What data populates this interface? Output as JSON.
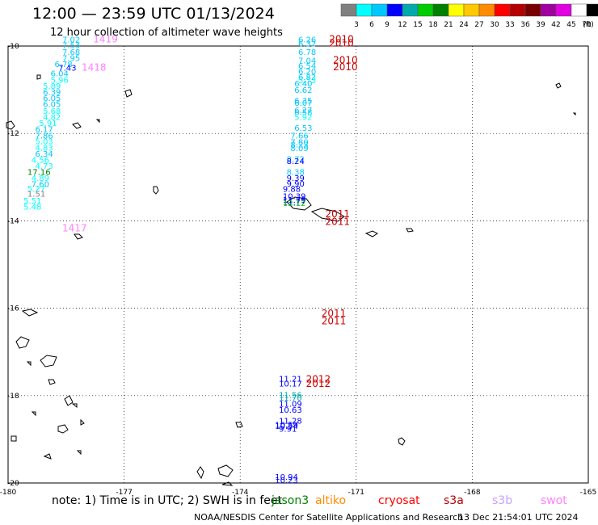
{
  "title": "12:00 — 23:59 UTC 01/13/2024",
  "subtitle": "12 hour collection of altimeter wave heights",
  "colorbar": {
    "labels": [
      "3",
      "6",
      "9",
      "12",
      "15",
      "18",
      "21",
      "24",
      "27",
      "30",
      "33",
      "36",
      "39",
      "42",
      "45",
      "70"
    ],
    "unit": "(ft)",
    "colors": [
      "#808080",
      "#00ffff",
      "#00c8ff",
      "#0000ff",
      "#00aaaa",
      "#00cc00",
      "#008000",
      "#ffff00",
      "#ffc800",
      "#ff8c00",
      "#ff0000",
      "#b40000",
      "#780000",
      "#a000a0",
      "#e000e0",
      "#ffffff",
      "#000000"
    ]
  },
  "footer": {
    "note": "note: 1) Time is in UTC; 2) SWH is in feet",
    "satellites": [
      {
        "name": "jason3",
        "color": "#008000"
      },
      {
        "name": "altiko",
        "color": "#ff8c00"
      },
      {
        "name": "cryosat",
        "color": "#ff0000"
      },
      {
        "name": "s3a",
        "color": "#b40000"
      },
      {
        "name": "s3b",
        "color": "#c8a0ff"
      },
      {
        "name": "swot",
        "color": "#ff80ff"
      }
    ],
    "credit": "NOAA/NESDIS Center for Satellite Applications and Research",
    "timestamp": "13 Dec 21:54:01 UTC 2024"
  },
  "chart_data": {
    "type": "scatter",
    "xlim": [
      -180,
      -165
    ],
    "ylim": [
      -20,
      -10
    ],
    "x_ticks": [
      "-180",
      "-177",
      "-174",
      "-171",
      "-168",
      "-165"
    ],
    "y_ticks": [
      "-10",
      "-12",
      "-14",
      "-16",
      "-18",
      "-20"
    ],
    "grid": true,
    "track_labels": [
      {
        "text": "1419",
        "lon": -177.8,
        "lat": -9.92,
        "color": "#ff80ff"
      },
      {
        "text": "1418",
        "lon": -178.1,
        "lat": -10.56,
        "color": "#ff80ff"
      },
      {
        "text": "1417",
        "lon": -178.6,
        "lat": -14.24,
        "color": "#ff80ff"
      },
      {
        "text": "2010",
        "lon": -171.7,
        "lat": -9.92,
        "color": "#cc0000"
      },
      {
        "text": "2010",
        "lon": -171.7,
        "lat": -10.01,
        "color": "#cc0000"
      },
      {
        "text": "2010",
        "lon": -171.6,
        "lat": -10.4,
        "color": "#cc0000"
      },
      {
        "text": "2010",
        "lon": -171.6,
        "lat": -10.55,
        "color": "#cc0000"
      },
      {
        "text": "2011",
        "lon": -171.8,
        "lat": -13.92,
        "color": "#cc0000"
      },
      {
        "text": "2011",
        "lon": -171.8,
        "lat": -14.09,
        "color": "#cc0000"
      },
      {
        "text": "2011",
        "lon": -171.9,
        "lat": -16.19,
        "color": "#cc0000"
      },
      {
        "text": "2011",
        "lon": -171.9,
        "lat": -16.37,
        "color": "#cc0000"
      },
      {
        "text": "2012",
        "lon": -172.3,
        "lat": -17.7,
        "color": "#cc0000"
      },
      {
        "text": "2012",
        "lon": -172.3,
        "lat": -17.8,
        "color": "#cc0000"
      }
    ],
    "points": [
      {
        "v": "7.02",
        "lon": -178.6,
        "lat": -9.92,
        "color": "#00c8ff"
      },
      {
        "v": "7.53",
        "lon": -178.6,
        "lat": -10.05,
        "color": "#00c8ff"
      },
      {
        "v": "7.68",
        "lon": -178.6,
        "lat": -10.2,
        "color": "#00c8ff"
      },
      {
        "v": "7.95",
        "lon": -178.6,
        "lat": -10.34,
        "color": "#00c8ff"
      },
      {
        "v": "6.78",
        "lon": -178.8,
        "lat": -10.48,
        "color": "#00c8ff"
      },
      {
        "v": "7.43",
        "lon": -178.7,
        "lat": -10.56,
        "color": "#0000ff"
      },
      {
        "v": "6.04",
        "lon": -178.9,
        "lat": -10.69,
        "color": "#00c8ff"
      },
      {
        "v": "5.96",
        "lon": -178.9,
        "lat": -10.84,
        "color": "#00ffff"
      },
      {
        "v": "5.89",
        "lon": -179.1,
        "lat": -10.98,
        "color": "#00ffff"
      },
      {
        "v": "6.39",
        "lon": -179.1,
        "lat": -11.12,
        "color": "#00c8ff"
      },
      {
        "v": "6.05",
        "lon": -179.1,
        "lat": -11.26,
        "color": "#00c8ff"
      },
      {
        "v": "6.05",
        "lon": -179.1,
        "lat": -11.4,
        "color": "#00c8ff"
      },
      {
        "v": "5.68",
        "lon": -179.1,
        "lat": -11.55,
        "color": "#00ffff"
      },
      {
        "v": "4.82",
        "lon": -179.1,
        "lat": -11.69,
        "color": "#00ffff"
      },
      {
        "v": "5.91",
        "lon": -179.2,
        "lat": -11.83,
        "color": "#00ffff"
      },
      {
        "v": "6.17",
        "lon": -179.3,
        "lat": -11.97,
        "color": "#00c8ff"
      },
      {
        "v": "7.86",
        "lon": -179.3,
        "lat": -12.12,
        "color": "#00c8ff"
      },
      {
        "v": "5.03",
        "lon": -179.3,
        "lat": -12.25,
        "color": "#00ffff"
      },
      {
        "v": "4.83",
        "lon": -179.3,
        "lat": -12.39,
        "color": "#00ffff"
      },
      {
        "v": "6.34",
        "lon": -179.3,
        "lat": -12.53,
        "color": "#00c8ff"
      },
      {
        "v": "4.56",
        "lon": -179.4,
        "lat": -12.67,
        "color": "#00ffff"
      },
      {
        "v": "4.73",
        "lon": -179.3,
        "lat": -12.81,
        "color": "#00ffff"
      },
      {
        "v": "17.16",
        "lon": -179.5,
        "lat": -12.95,
        "color": "#008000"
      },
      {
        "v": "4.89",
        "lon": -179.4,
        "lat": -13.09,
        "color": "#00ffff"
      },
      {
        "v": "7.60",
        "lon": -179.4,
        "lat": -13.23,
        "color": "#00c8ff"
      },
      {
        "v": "5.27",
        "lon": -179.5,
        "lat": -13.33,
        "color": "#00ffff"
      },
      {
        "v": "1.51",
        "lon": -179.5,
        "lat": -13.45,
        "color": "#808080"
      },
      {
        "v": "5.51",
        "lon": -179.6,
        "lat": -13.6,
        "color": "#00ffff"
      },
      {
        "v": "5.48",
        "lon": -179.6,
        "lat": -13.74,
        "color": "#00ffff"
      },
      {
        "v": "6.26",
        "lon": -172.5,
        "lat": -9.92,
        "color": "#00c8ff"
      },
      {
        "v": "6.32",
        "lon": -172.5,
        "lat": -10.01,
        "color": "#00c8ff"
      },
      {
        "v": "6.78",
        "lon": -172.5,
        "lat": -10.2,
        "color": "#00c8ff"
      },
      {
        "v": "7.04",
        "lon": -172.5,
        "lat": -10.4,
        "color": "#00c8ff"
      },
      {
        "v": "6.54",
        "lon": -172.5,
        "lat": -10.52,
        "color": "#00c8ff"
      },
      {
        "v": "6.20",
        "lon": -172.5,
        "lat": -10.65,
        "color": "#00c8ff"
      },
      {
        "v": "6.82",
        "lon": -172.5,
        "lat": -10.78,
        "color": "#00c8ff"
      },
      {
        "v": "5.73",
        "lon": -172.5,
        "lat": -10.85,
        "color": "#00ffff"
      },
      {
        "v": "6.40",
        "lon": -172.6,
        "lat": -10.92,
        "color": "#00c8ff"
      },
      {
        "v": "6.62",
        "lon": -172.6,
        "lat": -11.07,
        "color": "#00c8ff"
      },
      {
        "v": "6.35",
        "lon": -172.6,
        "lat": -11.31,
        "color": "#00c8ff"
      },
      {
        "v": "6.07",
        "lon": -172.6,
        "lat": -11.37,
        "color": "#00c8ff"
      },
      {
        "v": "6.27",
        "lon": -172.6,
        "lat": -11.53,
        "color": "#00c8ff"
      },
      {
        "v": "6.58",
        "lon": -172.6,
        "lat": -11.58,
        "color": "#00c8ff"
      },
      {
        "v": "5.92",
        "lon": -172.6,
        "lat": -11.69,
        "color": "#00ffff"
      },
      {
        "v": "6.53",
        "lon": -172.6,
        "lat": -11.94,
        "color": "#00c8ff"
      },
      {
        "v": "7.66",
        "lon": -172.7,
        "lat": -12.12,
        "color": "#00c8ff"
      },
      {
        "v": "7.80",
        "lon": -172.7,
        "lat": -12.26,
        "color": "#00c8ff"
      },
      {
        "v": "8.23",
        "lon": -172.7,
        "lat": -12.32,
        "color": "#00c8ff"
      },
      {
        "v": "8.09",
        "lon": -172.7,
        "lat": -12.4,
        "color": "#00c8ff"
      },
      {
        "v": "8.72",
        "lon": -172.8,
        "lat": -12.65,
        "color": "#00c8ff"
      },
      {
        "v": "8.24",
        "lon": -172.8,
        "lat": -12.7,
        "color": "#0000ff"
      },
      {
        "v": "8.38",
        "lon": -172.8,
        "lat": -12.95,
        "color": "#00c8ff"
      },
      {
        "v": "9.39",
        "lon": -172.8,
        "lat": -13.09,
        "color": "#0000ff"
      },
      {
        "v": "9.90",
        "lon": -172.8,
        "lat": -13.22,
        "color": "#0000ff"
      },
      {
        "v": "9.88",
        "lon": -172.9,
        "lat": -13.34,
        "color": "#0000ff"
      },
      {
        "v": "10.39",
        "lon": -172.9,
        "lat": -13.5,
        "color": "#0000ff"
      },
      {
        "v": "11.79",
        "lon": -172.9,
        "lat": -13.59,
        "color": "#0000ff"
      },
      {
        "v": "11.77",
        "lon": -172.9,
        "lat": -13.63,
        "color": "#0000ff"
      },
      {
        "v": "12.12",
        "lon": -172.9,
        "lat": -13.66,
        "color": "#00cc00"
      },
      {
        "v": "11.21",
        "lon": -173.0,
        "lat": -17.68,
        "color": "#0000ff"
      },
      {
        "v": "10.17",
        "lon": -173.0,
        "lat": -17.79,
        "color": "#0000ff"
      },
      {
        "v": "11.56",
        "lon": -173.0,
        "lat": -18.05,
        "color": "#00aaaa"
      },
      {
        "v": "11.70",
        "lon": -173.0,
        "lat": -18.11,
        "color": "#00aaaa"
      },
      {
        "v": "11.09",
        "lon": -173.0,
        "lat": -18.25,
        "color": "#0000ff"
      },
      {
        "v": "10.63",
        "lon": -173.0,
        "lat": -18.39,
        "color": "#0000ff"
      },
      {
        "v": "11.28",
        "lon": -173.0,
        "lat": -18.64,
        "color": "#0000ff"
      },
      {
        "v": "10.59",
        "lon": -173.1,
        "lat": -18.73,
        "color": "#0000ff"
      },
      {
        "v": "10.54",
        "lon": -173.1,
        "lat": -18.76,
        "color": "#0000ff"
      },
      {
        "v": "9.91",
        "lon": -173.0,
        "lat": -18.83,
        "color": "#0000ff"
      },
      {
        "v": "10.94",
        "lon": -173.1,
        "lat": -19.93,
        "color": "#0000ff"
      },
      {
        "v": "10.23",
        "lon": -173.1,
        "lat": -20.0,
        "color": "#0000ff"
      }
    ]
  }
}
